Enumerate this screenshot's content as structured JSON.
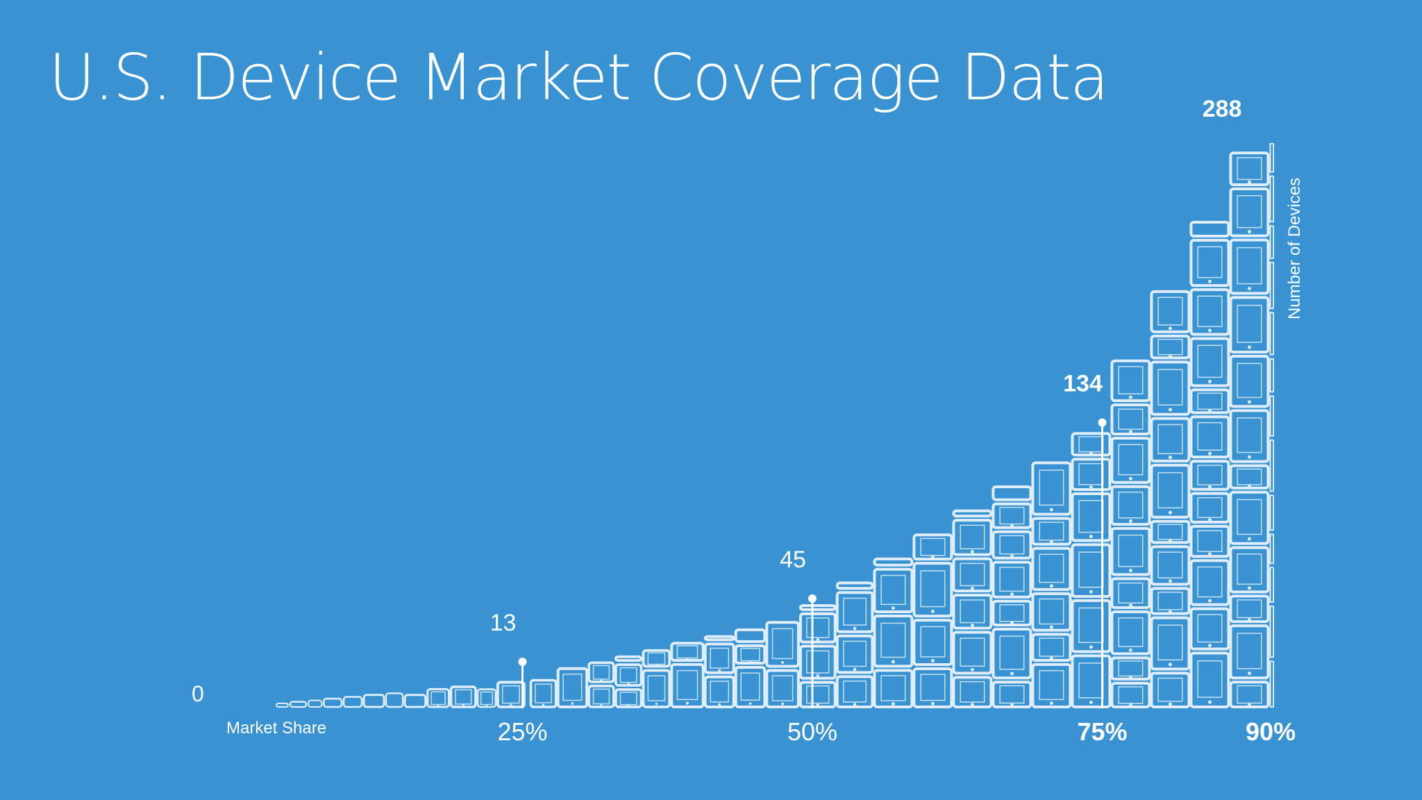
{
  "page": {
    "title": "U.S. Device Market Coverage Data",
    "background": "#3993d3",
    "device_color": "#dfeefa"
  },
  "chart_data": {
    "type": "area",
    "title": "U.S. Device Market Coverage Data",
    "xlabel": "Market Share",
    "ylabel": "Number of Devices",
    "xlim": [
      0,
      90
    ],
    "ylim": [
      0,
      288
    ],
    "origin_label": "0",
    "x_ticks": [
      {
        "value": 25,
        "label": "25%"
      },
      {
        "value": 50,
        "label": "50%"
      },
      {
        "value": 75,
        "label": "75%"
      },
      {
        "value": 90,
        "label": "90%"
      }
    ],
    "milestones": [
      {
        "market_share": 25,
        "devices": 13,
        "label": "13"
      },
      {
        "market_share": 50,
        "devices": 45,
        "label": "45"
      },
      {
        "market_share": 75,
        "devices": 134,
        "label": "134"
      },
      {
        "market_share": 90,
        "devices": 288,
        "label": "288"
      }
    ],
    "grid": false,
    "legend": "none"
  }
}
